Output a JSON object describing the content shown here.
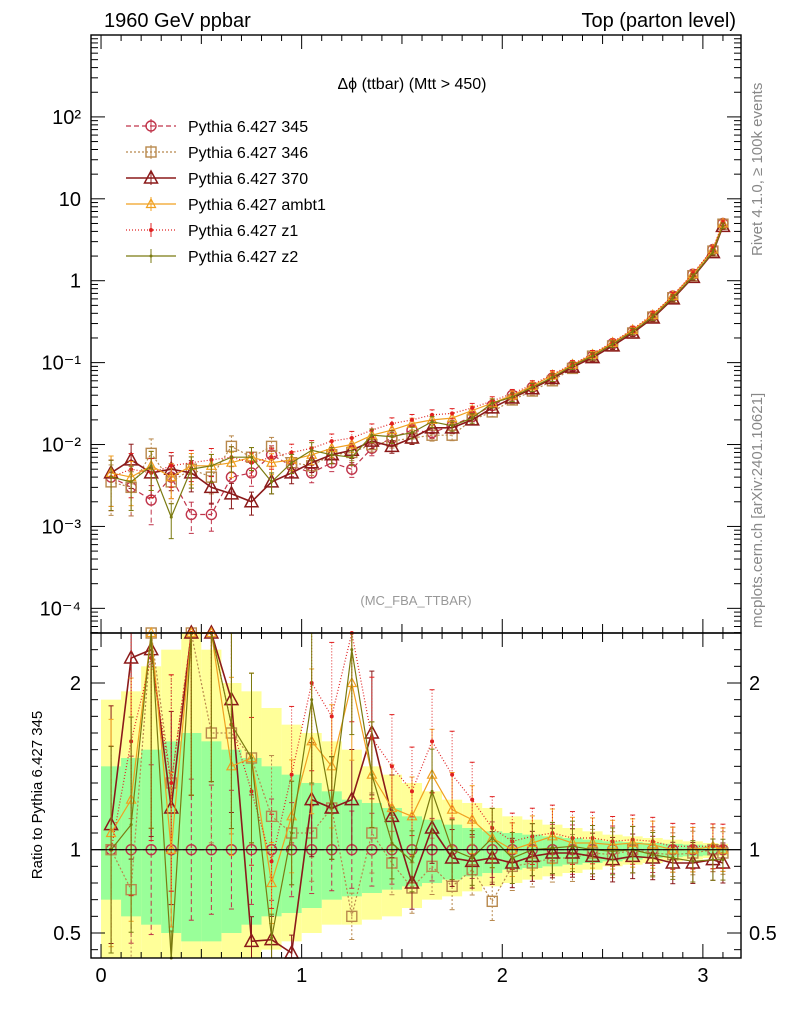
{
  "header": {
    "left": "1960 GeV ppbar",
    "right": "Top (parton level)"
  },
  "side_labels": {
    "rivet": "Rivet 4.1.0, ≥ 100k events",
    "mcplots": "mcplots.cern.ch [arXiv:2401.10621]"
  },
  "chart_data": [
    {
      "type": "line",
      "title": "Δϕ (ttbar) (Mtt > 450)",
      "watermark": "(MC_FBA_TTBAR)",
      "yscale": "log",
      "ylim": [
        5e-05,
        1000
      ],
      "xlim": [
        -0.05,
        3.19
      ],
      "ytick_labels": [
        "10⁻⁴",
        "10⁻³",
        "10⁻²",
        "10⁻¹",
        "1",
        "10",
        "10²"
      ],
      "ytick_values": [
        0.0001,
        0.001,
        0.01,
        0.1,
        1,
        10,
        100
      ],
      "x": [
        0.05,
        0.15,
        0.25,
        0.35,
        0.45,
        0.55,
        0.65,
        0.75,
        0.85,
        0.95,
        1.05,
        1.15,
        1.25,
        1.35,
        1.45,
        1.55,
        1.65,
        1.75,
        1.85,
        1.95,
        2.05,
        2.15,
        2.25,
        2.35,
        2.45,
        2.55,
        2.65,
        2.75,
        2.85,
        2.95,
        3.05,
        3.1
      ],
      "series": [
        {
          "name": "Pythia 6.427 345",
          "color": "#c0344a",
          "dash": "5,3",
          "marker": "circle",
          "values": [
            0.004,
            0.003,
            0.0021,
            0.004,
            0.0014,
            0.0014,
            0.004,
            0.0045,
            0.0075,
            0.0055,
            0.0045,
            0.006,
            0.005,
            0.009,
            0.012,
            0.015,
            0.014,
            0.017,
            0.022,
            0.03,
            0.04,
            0.05,
            0.065,
            0.09,
            0.12,
            0.17,
            0.24,
            0.37,
            0.65,
            1.2,
            2.4,
            5.0
          ]
        },
        {
          "name": "Pythia 6.427 346",
          "color": "#b8884c",
          "dash": "2,2",
          "marker": "square",
          "values": [
            0.0035,
            0.003,
            0.0078,
            0.0035,
            0.005,
            0.004,
            0.0095,
            0.007,
            0.0095,
            0.006,
            0.0055,
            0.0075,
            0.008,
            0.01,
            0.011,
            0.012,
            0.013,
            0.013,
            0.02,
            0.025,
            0.035,
            0.045,
            0.06,
            0.085,
            0.12,
            0.16,
            0.23,
            0.36,
            0.62,
            1.15,
            2.3,
            4.9
          ]
        },
        {
          "name": "Pythia 6.427 370",
          "color": "#8b1a1a",
          "dash": "",
          "marker": "triangle",
          "values": [
            0.0045,
            0.0065,
            0.0045,
            0.005,
            0.0045,
            0.003,
            0.0025,
            0.002,
            0.0035,
            0.0045,
            0.006,
            0.0075,
            0.0085,
            0.011,
            0.0095,
            0.012,
            0.016,
            0.016,
            0.02,
            0.028,
            0.037,
            0.048,
            0.064,
            0.088,
            0.115,
            0.16,
            0.23,
            0.35,
            0.6,
            1.1,
            2.2,
            4.6
          ]
        },
        {
          "name": "Pythia 6.427 ambt1",
          "color": "#f0a020",
          "dash": "",
          "marker": "triangle-small",
          "values": [
            0.0045,
            0.004,
            0.0055,
            0.004,
            0.0055,
            0.0055,
            0.006,
            0.007,
            0.006,
            0.0065,
            0.0075,
            0.009,
            0.01,
            0.013,
            0.015,
            0.018,
            0.02,
            0.021,
            0.026,
            0.032,
            0.04,
            0.052,
            0.07,
            0.094,
            0.125,
            0.175,
            0.25,
            0.38,
            0.65,
            1.2,
            2.4,
            5.0
          ]
        },
        {
          "name": "Pythia 6.427 z1",
          "color": "#e02020",
          "dash": "1,2",
          "marker": "dot",
          "values": [
            0.004,
            0.005,
            0.0045,
            0.0055,
            0.006,
            0.0065,
            0.007,
            0.006,
            0.007,
            0.008,
            0.009,
            0.011,
            0.012,
            0.015,
            0.018,
            0.02,
            0.023,
            0.024,
            0.028,
            0.034,
            0.042,
            0.054,
            0.072,
            0.096,
            0.128,
            0.178,
            0.255,
            0.39,
            0.66,
            1.22,
            2.45,
            5.1
          ]
        },
        {
          "name": "Pythia 6.427 z2",
          "color": "#7a7a10",
          "dash": "",
          "marker": "dot-small",
          "values": [
            0.004,
            0.0035,
            0.0055,
            0.0013,
            0.005,
            0.0055,
            0.007,
            0.007,
            0.0035,
            0.006,
            0.0085,
            0.0075,
            0.007,
            0.013,
            0.0125,
            0.014,
            0.019,
            0.017,
            0.021,
            0.032,
            0.038,
            0.05,
            0.066,
            0.092,
            0.12,
            0.168,
            0.24,
            0.36,
            0.62,
            1.12,
            2.25,
            4.7
          ]
        }
      ]
    },
    {
      "type": "line",
      "ylabel": "Ratio to Pythia 6.427 345",
      "ylim": [
        0.35,
        2.3
      ],
      "xlim": [
        -0.05,
        3.19
      ],
      "ytick_labels": [
        "0.5",
        "1",
        "2"
      ],
      "ytick_values": [
        0.5,
        1,
        2
      ],
      "xtick_labels": [
        "0",
        "1",
        "2",
        "3"
      ],
      "xtick_values": [
        0,
        1,
        2,
        3
      ],
      "reference_line": 1,
      "band_outer": {
        "name": "stat. uncertainty (yellow)",
        "color": "#ffff99",
        "lo": [
          0.35,
          0.35,
          0.35,
          0.35,
          0.35,
          0.35,
          0.35,
          0.35,
          0.4,
          0.45,
          0.5,
          0.55,
          0.55,
          0.58,
          0.6,
          0.65,
          0.7,
          0.72,
          0.75,
          0.78,
          0.8,
          0.82,
          0.84,
          0.86,
          0.88,
          0.9,
          0.91,
          0.92,
          0.93,
          0.94,
          0.95,
          0.96
        ],
        "hi": [
          1.9,
          1.95,
          2.1,
          2.2,
          2.3,
          2.2,
          2.0,
          1.95,
          1.85,
          1.75,
          1.7,
          1.65,
          1.6,
          1.5,
          1.45,
          1.4,
          1.35,
          1.3,
          1.28,
          1.25,
          1.2,
          1.18,
          1.15,
          1.13,
          1.11,
          1.09,
          1.08,
          1.07,
          1.06,
          1.05,
          1.04,
          1.035
        ]
      },
      "band_inner": {
        "name": "stat. uncertainty (green)",
        "color": "#99ff99",
        "lo": [
          0.7,
          0.6,
          0.55,
          0.5,
          0.45,
          0.45,
          0.5,
          0.55,
          0.6,
          0.62,
          0.65,
          0.7,
          0.72,
          0.74,
          0.76,
          0.78,
          0.8,
          0.82,
          0.84,
          0.86,
          0.88,
          0.89,
          0.9,
          0.91,
          0.92,
          0.93,
          0.94,
          0.95,
          0.955,
          0.96,
          0.965,
          0.97
        ],
        "hi": [
          1.5,
          1.55,
          1.6,
          1.65,
          1.7,
          1.65,
          1.6,
          1.55,
          1.5,
          1.45,
          1.4,
          1.35,
          1.3,
          1.28,
          1.25,
          1.2,
          1.18,
          1.15,
          1.13,
          1.11,
          1.1,
          1.09,
          1.08,
          1.07,
          1.06,
          1.05,
          1.045,
          1.04,
          1.035,
          1.03,
          1.025,
          1.02
        ]
      },
      "series": [
        {
          "name": "Pythia 6.427 345",
          "color": "#c0344a",
          "dash": "5,3",
          "marker": "circle",
          "values": [
            1.0,
            1.0,
            1.0,
            1.0,
            1.0,
            1.0,
            1.0,
            1.0,
            1.0,
            1.0,
            1.0,
            1.0,
            1.0,
            1.0,
            1.0,
            1.0,
            1.0,
            1.0,
            1.0,
            1.0,
            1.0,
            1.0,
            1.0,
            1.0,
            1.0,
            1.0,
            1.0,
            1.0,
            1.0,
            1.0,
            1.0,
            1.0
          ]
        },
        {
          "name": "Pythia 6.427 346",
          "color": "#b8884c",
          "dash": "2,2",
          "marker": "square",
          "values": [
            1.0,
            0.76,
            2.3,
            1.4,
            2.3,
            1.7,
            1.7,
            1.55,
            1.2,
            1.1,
            1.1,
            1.25,
            0.6,
            1.1,
            0.92,
            0.77,
            0.9,
            0.78,
            0.88,
            0.69,
            0.9,
            0.92,
            0.95,
            0.95,
            0.98,
            0.97,
            1.0,
            0.98,
            0.97,
            0.98,
            1.0,
            0.98
          ]
        },
        {
          "name": "Pythia 6.427 370",
          "color": "#8b1a1a",
          "dash": "",
          "marker": "triangle",
          "values": [
            1.15,
            2.15,
            2.2,
            1.25,
            2.3,
            2.3,
            1.9,
            0.45,
            0.46,
            0.38,
            1.3,
            1.25,
            1.3,
            1.7,
            1.2,
            0.8,
            1.13,
            0.95,
            0.93,
            0.95,
            0.92,
            0.96,
            0.98,
            0.98,
            0.96,
            0.94,
            0.96,
            0.95,
            0.92,
            0.92,
            0.94,
            0.92
          ]
        },
        {
          "name": "Pythia 6.427 ambt1",
          "color": "#f0a020",
          "dash": "",
          "marker": "triangle-small",
          "values": [
            1.1,
            1.3,
            2.3,
            1.0,
            2.3,
            2.3,
            1.5,
            1.55,
            0.8,
            1.2,
            1.65,
            1.5,
            2.0,
            1.45,
            1.25,
            1.2,
            1.45,
            1.24,
            1.18,
            1.07,
            1.0,
            1.04,
            1.08,
            1.04,
            1.04,
            1.03,
            1.04,
            1.03,
            1.0,
            1.0,
            1.02,
            1.0
          ]
        },
        {
          "name": "Pythia 6.427 z1",
          "color": "#e02020",
          "dash": "1,2",
          "marker": "dot",
          "values": [
            1.0,
            1.65,
            2.15,
            1.4,
            2.3,
            2.3,
            1.75,
            1.35,
            0.93,
            1.45,
            2.0,
            1.8,
            2.3,
            1.67,
            1.5,
            1.35,
            1.65,
            1.45,
            1.3,
            1.13,
            1.05,
            1.08,
            1.1,
            1.07,
            1.07,
            1.05,
            1.06,
            1.05,
            1.02,
            1.02,
            1.02,
            1.02
          ]
        },
        {
          "name": "Pythia 6.427 z2",
          "color": "#7a7a10",
          "dash": "",
          "marker": "dot-small",
          "values": [
            1.0,
            1.15,
            2.3,
            0.35,
            2.3,
            2.3,
            1.75,
            1.55,
            0.47,
            1.1,
            1.9,
            1.25,
            2.2,
            1.45,
            1.04,
            0.93,
            1.35,
            1.0,
            0.95,
            1.07,
            0.95,
            1.0,
            1.01,
            1.02,
            1.0,
            0.99,
            1.0,
            0.97,
            0.95,
            0.93,
            0.94,
            0.94
          ]
        }
      ]
    }
  ]
}
